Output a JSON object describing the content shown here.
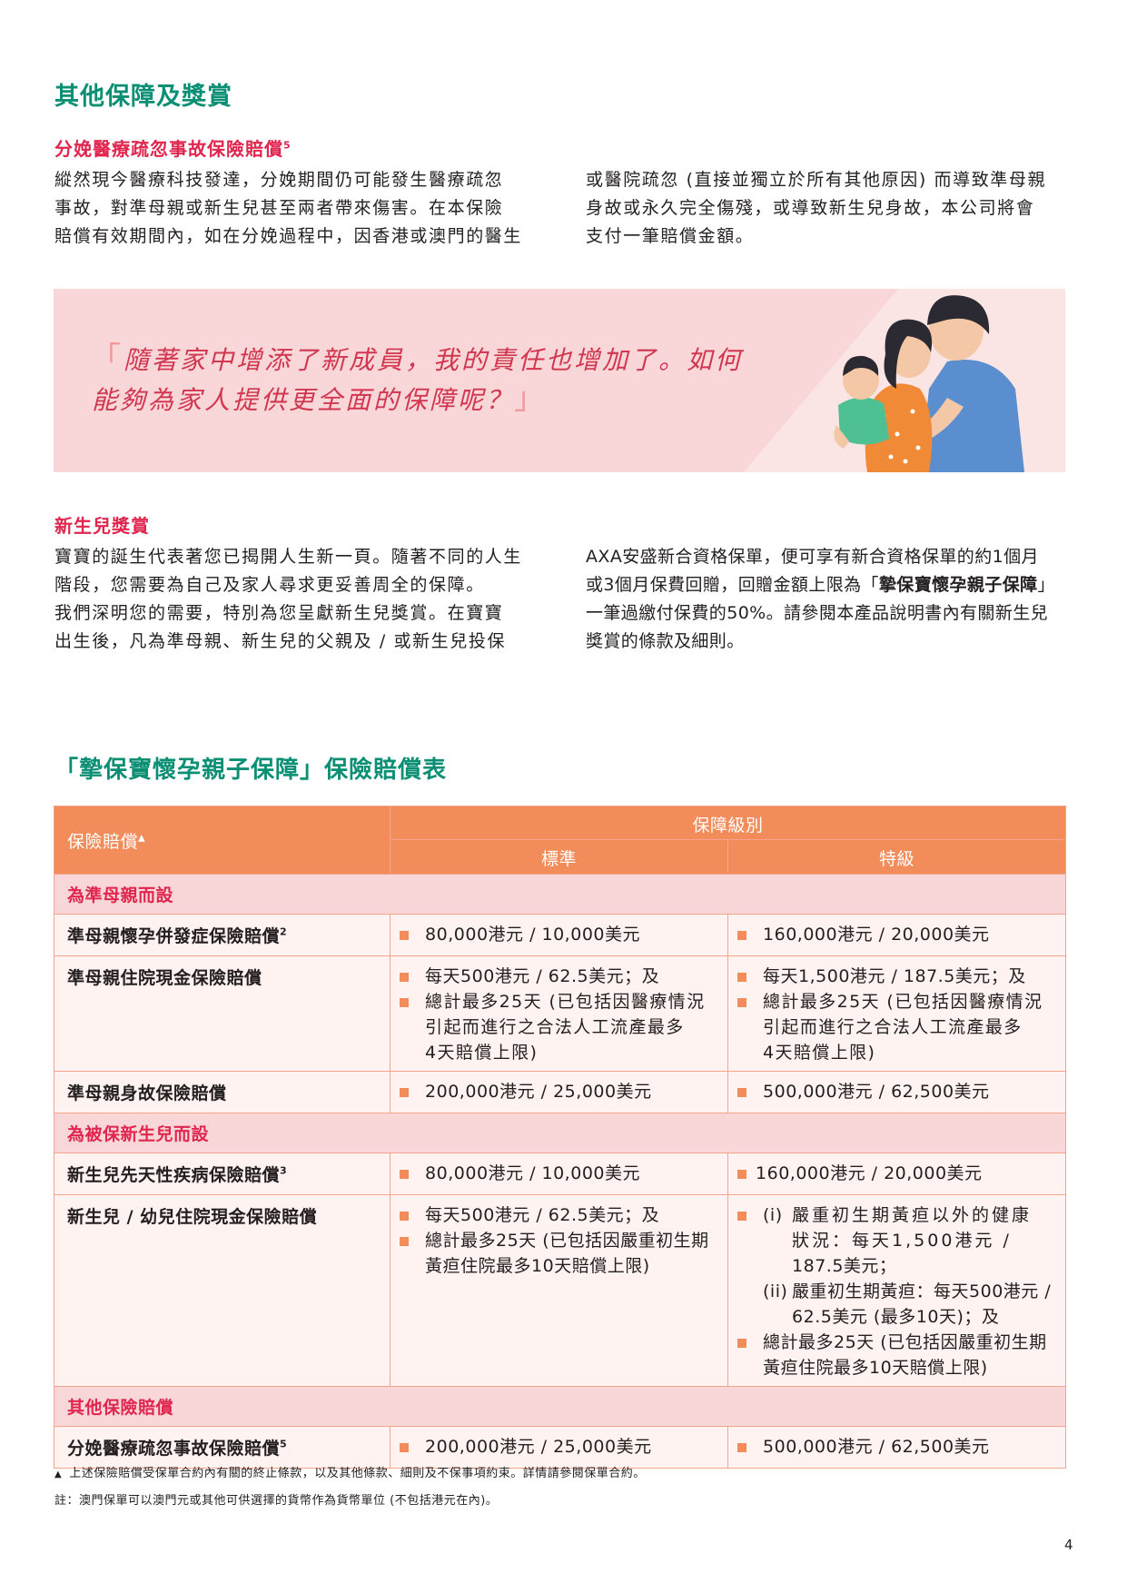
{
  "heading": "其他保障及獎賞",
  "section1": {
    "title": "分娩醫療疏忽事故保險賠償",
    "title_sup": "5",
    "left_lines": [
      "縱然現今醫療科技發達，分娩期間仍可能發生醫療疏忽",
      "事故，對準母親或新生兒甚至兩者帶來傷害。在本保險",
      "賠償有效期間內，如在分娩過程中，因香港或澳門的醫生"
    ],
    "right_lines": [
      "或醫院疏忽 (直接並獨立於所有其他原因) 而導致準母親",
      "身故或永久完全傷殘，或導致新生兒身故，本公司將會",
      "支付一筆賠償金額。"
    ]
  },
  "quote": {
    "open": "「",
    "line1": "隨著家中增添了新成員，我的責任也增加了。如何",
    "line2": "能夠為家人提供更全面的保障呢？",
    "close": "」"
  },
  "section2": {
    "title": "新生兒獎賞",
    "left_lines": [
      "寶寶的誕生代表著您已揭開人生新一頁。隨著不同的人生",
      "階段，您需要為自己及家人尋求更妥善周全的保障。",
      "我們深明您的需要，特別為您呈獻新生兒獎賞。在寶寶",
      "出生後，凡為準母親、新生兒的父親及 / 或新生兒投保"
    ],
    "right_line1": "AXA安盛新合資格保單，便可享有新合資格保單的約1個月",
    "right_line2_pre": "或3個月保費回贈，回贈金額上限為「",
    "right_line2_bold": "摯保寶懷孕親子保障",
    "right_line2_post": "」",
    "right_line3": "一筆過繳付保費的50%。請參閱本產品說明書內有關新生兒",
    "right_line4": "獎賞的條款及細則。"
  },
  "table": {
    "title": "「摯保寶懷孕親子保障」保險賠償表",
    "header_benefit": "保險賠償",
    "header_benefit_mark": "▲",
    "header_level": "保障級別",
    "header_standard": "標準",
    "header_superior": "特級",
    "section_mother": "為準母親而設",
    "row1_name": "準母親懷孕併發症保險賠償",
    "row1_sup": "2",
    "row1_std": "80,000港元 / 10,000美元",
    "row1_sup_val": "160,000港元 / 20,000美元",
    "row2_name": "準母親住院現金保險賠償",
    "row2_std_a": "每天500港元 / 62.5美元；及",
    "row2_std_b": [
      "總計最多25天 (已包括因醫療情況",
      "引起而進行之合法人工流產最多",
      "4天賠償上限)"
    ],
    "row2_sup_a": "每天1,500港元 / 187.5美元；及",
    "row2_sup_b": [
      "總計最多25天 (已包括因醫療情況",
      "引起而進行之合法人工流產最多",
      "4天賠償上限)"
    ],
    "row3_name": "準母親身故保險賠償",
    "row3_std": "200,000港元 / 25,000美元",
    "row3_sup_val": "500,000港元 / 62,500美元",
    "section_newborn": "為被保新生兒而設",
    "row4_name": "新生兒先天性疾病保險賠償",
    "row4_sup": "3",
    "row4_std": "80,000港元 / 10,000美元",
    "row4_sup_val": "160,000港元 / 20,000美元",
    "row5_name": "新生兒 / 幼兒住院現金保險賠償",
    "row5_std_a": "每天500港元 / 62.5美元；及",
    "row5_std_b": [
      "總計最多25天 (已包括因嚴重初生期",
      "黃疸住院最多10天賠償上限)"
    ],
    "row5_sup_i_tag": "(i)",
    "row5_sup_i": [
      "嚴重初生期黃疸以外的健康",
      "狀況：每天1,500港元 /",
      "187.5美元；"
    ],
    "row5_sup_ii_tag": "(ii)",
    "row5_sup_ii": [
      "嚴重初生期黃疸：每天500港元 /",
      "62.5美元 (最多10天)；及"
    ],
    "row5_sup_b": [
      "總計最多25天 (已包括因嚴重初生期",
      "黃疸住院最多10天賠償上限)"
    ],
    "section_other": "其他保險賠償",
    "row6_name": "分娩醫療疏忽事故保險賠償",
    "row6_sup": "5",
    "row6_std": "200,000港元 / 25,000美元",
    "row6_sup_val": "500,000港元 / 62,500美元"
  },
  "footnotes": {
    "mark": "▲",
    "note1": "上述保險賠償受保單合約內有關的終止條款，以及其他條款、細則及不保事項約束。詳情請參閱保單合約。",
    "note2": "註：澳門保單可以澳門元或其他可供選擇的貨幣作為貨幣單位 (不包括港元在內)。"
  },
  "page_number": "4",
  "colors": {
    "green": "#0b8f74",
    "pink_red": "#e0264e",
    "orange": "#f28c5a",
    "banner_pink": "#f9d6d8",
    "row_bg": "#fff3f1"
  }
}
